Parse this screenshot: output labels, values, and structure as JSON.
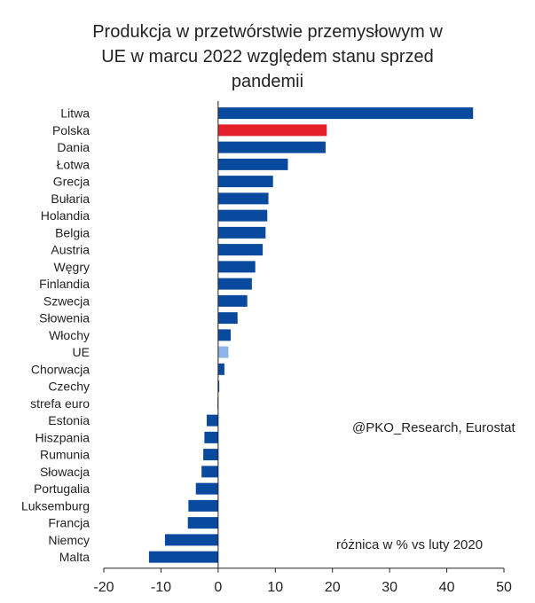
{
  "chart_data": {
    "type": "bar",
    "orientation": "horizontal",
    "title_lines": [
      "Produkcja w przetwórstwie przemysłowym w",
      "UE w marcu 2022 względem stanu sprzed",
      "pandemii"
    ],
    "categories": [
      "Litwa",
      "Polska",
      "Dania",
      "Łotwa",
      "Grecja",
      "Bułaria",
      "Holandia",
      "Belgia",
      "Austria",
      "Węgry",
      "Finlandia",
      "Szwecja",
      "Słowenia",
      "Włochy",
      "UE",
      "Chorwacja",
      "Czechy",
      "strefa euro",
      "Estonia",
      "Hiszpania",
      "Rumunia",
      "Słowacja",
      "Portugalia",
      "Luksemburg",
      "Francja",
      "Niemcy",
      "Malta"
    ],
    "values": [
      44.6,
      19.0,
      18.8,
      12.2,
      9.6,
      8.8,
      8.6,
      8.3,
      7.8,
      6.5,
      5.9,
      5.1,
      3.4,
      2.2,
      1.8,
      1.1,
      0.2,
      -0.1,
      -2.0,
      -2.4,
      -2.6,
      -2.9,
      -3.9,
      -5.2,
      -5.3,
      -9.3,
      -12.1
    ],
    "highlight": {
      "Polska": "#e3202b",
      "UE": "#8cb4e8"
    },
    "bar_color": "#0a4a9e",
    "xlim": [
      -20,
      50
    ],
    "xticks": [
      -20,
      -10,
      0,
      10,
      20,
      30,
      40,
      50
    ],
    "source": "@PKO_Research, Eurostat",
    "note": "różnica w % vs luty 2020"
  }
}
